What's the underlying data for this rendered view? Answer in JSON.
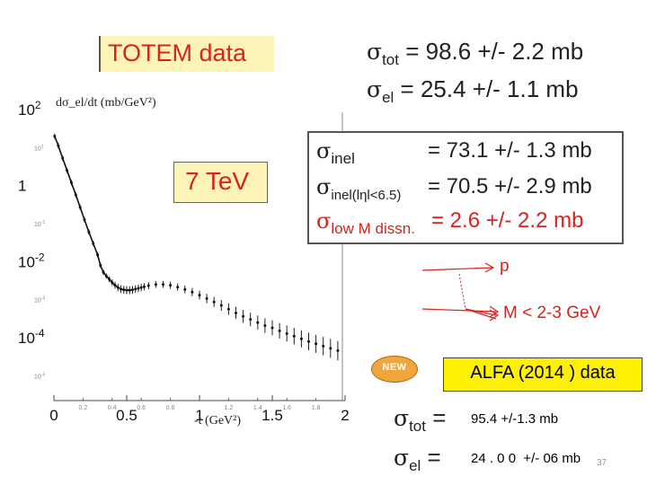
{
  "chart_data": {
    "type": "scatter",
    "title": "TOTEM data",
    "energy_label": "7 TeV",
    "ylabel": "dσ_el/dt (mb/GeV²)",
    "xlabel": "-t (GeV²)",
    "yscale": "log",
    "xlim": [
      0,
      2
    ],
    "ylim_exp": [
      -5,
      2
    ],
    "major_x_ticks": [
      "0",
      "0.5",
      "1",
      "1.5",
      "2"
    ],
    "minor_x_ticks": [
      "0.2",
      "0.4",
      "0.6",
      "0.8",
      "1.2",
      "1.4",
      "1.6",
      "1.8"
    ],
    "major_y_ticks": [
      {
        "base": "10",
        "exp": "2"
      },
      {
        "base": "1",
        "exp": ""
      },
      {
        "base": "10",
        "exp": "-2"
      },
      {
        "base": "10",
        "exp": "-4"
      }
    ],
    "minor_y_ticks": [
      "10",
      "10",
      "10",
      "10"
    ],
    "minor_y_exp": [
      "1",
      "-1",
      "-3",
      "-5"
    ],
    "x": [
      0.005,
      0.03,
      0.06,
      0.09,
      0.12,
      0.15,
      0.18,
      0.21,
      0.24,
      0.27,
      0.3,
      0.32,
      0.34,
      0.36,
      0.38,
      0.4,
      0.42,
      0.44,
      0.46,
      0.48,
      0.5,
      0.52,
      0.54,
      0.56,
      0.58,
      0.6,
      0.62,
      0.65,
      0.7,
      0.75,
      0.8,
      0.85,
      0.9,
      0.95,
      1.0,
      1.05,
      1.1,
      1.15,
      1.2,
      1.25,
      1.3,
      1.35,
      1.4,
      1.45,
      1.5,
      1.55,
      1.6,
      1.65,
      1.7,
      1.75,
      1.8,
      1.85,
      1.9,
      1.95
    ],
    "y_log10": [
      1.3,
      1.05,
      0.72,
      0.4,
      0.08,
      -0.24,
      -0.57,
      -0.9,
      -1.22,
      -1.52,
      -1.82,
      -2.1,
      -2.28,
      -2.38,
      -2.46,
      -2.55,
      -2.62,
      -2.68,
      -2.72,
      -2.74,
      -2.75,
      -2.75,
      -2.74,
      -2.72,
      -2.7,
      -2.68,
      -2.66,
      -2.63,
      -2.6,
      -2.6,
      -2.62,
      -2.67,
      -2.73,
      -2.8,
      -2.88,
      -2.97,
      -3.06,
      -3.15,
      -3.25,
      -3.35,
      -3.44,
      -3.52,
      -3.6,
      -3.68,
      -3.74,
      -3.82,
      -3.89,
      -3.96,
      -4.03,
      -4.1,
      -4.16,
      -4.22,
      -4.28,
      -4.34
    ]
  },
  "totem_results": {
    "tot": {
      "sigma": "σ",
      "sub": "tot",
      "value": " = 98.6 +/- 2.2 mb"
    },
    "el": {
      "sigma": "σ",
      "sub": "el",
      "value": " = 25.4 +/- 1.1 mb"
    }
  },
  "inelastic": {
    "rows": [
      {
        "sigma": "σ",
        "sub": "inel",
        "value": "= 73.1 +/- 1.3 mb"
      },
      {
        "sigma": "σ",
        "sub": "inel(lηl<6.5)",
        "value": "= 70.5 +/- 2.9 mb"
      },
      {
        "sigma": "σ",
        "sub": "low M dissn.",
        "value": "= 2.6 +/- 2.2 mb"
      }
    ]
  },
  "diagram": {
    "proton_label": "p",
    "mass_label": "M < 2-3 GeV"
  },
  "alfa": {
    "badge": "NEW",
    "title": "ALFA (2014 ) data",
    "tot": {
      "sigma": "σ",
      "sub": "tot",
      "eq": " =",
      "value": "95.4 +/-1.3 mb"
    },
    "el": {
      "sigma": "σ",
      "sub": "el",
      "eq": " =",
      "value": "24 . 0 0  +/- 06 mb"
    }
  },
  "page_number": "37",
  "colors": {
    "accent_red": "#d8231f",
    "highlight_yellow": "#fdf000",
    "label_yellow": "#fbf3b8"
  }
}
